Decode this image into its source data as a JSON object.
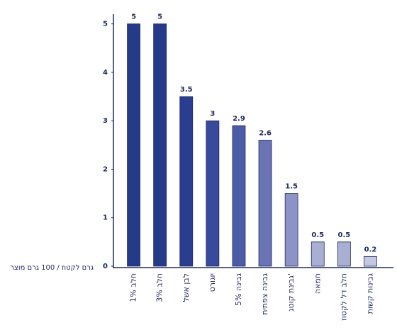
{
  "chart_data": {
    "type": "bar",
    "y_label": "גרם לקטוז / 100 גרם מוצר",
    "categories": [
      "חלב 1%",
      "חלב 3%",
      "לבן אשל",
      "יוגורט",
      "גבינה 5%",
      "גבינה צפתית",
      "גבינת קוטג'",
      "חמאה",
      "חלב דל לקטוז",
      "גבינות קשות"
    ],
    "values": [
      5,
      5,
      3.5,
      3,
      2.9,
      2.6,
      1.5,
      0.5,
      0.5,
      0.2
    ],
    "colors": [
      "#263a8a",
      "#263a8a",
      "#2b3d91",
      "#384a9b",
      "#4d5ca7",
      "#6874b4",
      "#8b94c5",
      "#a8afd3",
      "#a8afd3",
      "#c4c9e1"
    ],
    "ylim": [
      0,
      5.2
    ],
    "yticks": [
      0,
      1,
      2,
      3,
      4,
      5
    ]
  }
}
